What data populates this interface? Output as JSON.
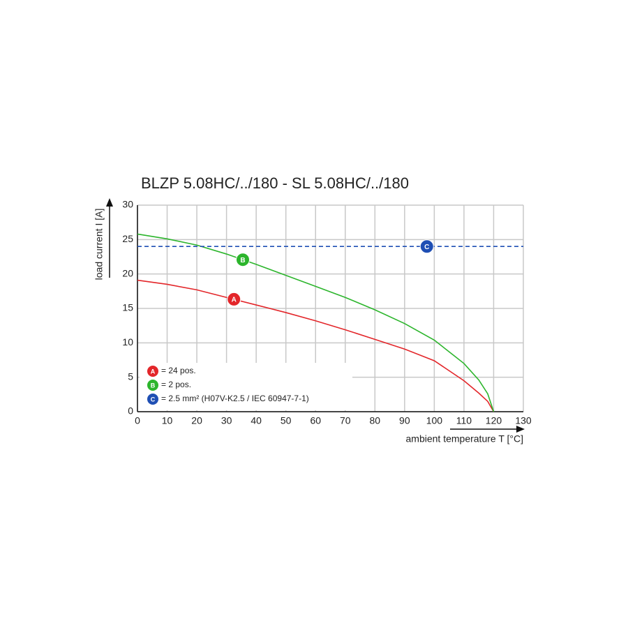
{
  "chart_data": {
    "type": "line",
    "title": "BLZP 5.08HC/../180 - SL 5.08HC/../180",
    "x_label": "ambient temperature T [°C]",
    "y_label": "load current I [A]",
    "xlim": [
      0,
      130
    ],
    "ylim": [
      0,
      30
    ],
    "xticks": [
      0,
      10,
      20,
      30,
      40,
      50,
      60,
      70,
      80,
      90,
      100,
      110,
      120,
      130
    ],
    "yticks": [
      0,
      5,
      10,
      15,
      20,
      25,
      30
    ],
    "grid": true,
    "series": [
      {
        "name": "= 24 pos.",
        "marker_label": "A",
        "color": "#e3262a",
        "marker_x": 32.5,
        "x": [
          0,
          10,
          20,
          30,
          40,
          50,
          60,
          70,
          80,
          90,
          100,
          110,
          115,
          118,
          120
        ],
        "values": [
          19.1,
          18.5,
          17.7,
          16.6,
          15.5,
          14.4,
          13.2,
          11.9,
          10.5,
          9.1,
          7.4,
          4.5,
          2.7,
          1.5,
          0
        ]
      },
      {
        "name": "= 2 pos.",
        "marker_label": "B",
        "color": "#2cb52c",
        "marker_x": 35.5,
        "x": [
          0,
          10,
          20,
          30,
          40,
          50,
          60,
          70,
          80,
          90,
          100,
          110,
          115,
          118,
          120
        ],
        "values": [
          25.8,
          25.1,
          24.2,
          22.9,
          21.4,
          19.8,
          18.2,
          16.6,
          14.8,
          12.8,
          10.4,
          7.0,
          4.6,
          2.6,
          0
        ]
      },
      {
        "name": "= 2.5 mm² (H07V-K2.5 / IEC 60947-7-1)",
        "marker_label": "C",
        "color": "#1f4fb4",
        "marker_x": 97.5,
        "dashed": true,
        "x": [
          0,
          130
        ],
        "values": [
          24,
          24
        ]
      }
    ]
  }
}
